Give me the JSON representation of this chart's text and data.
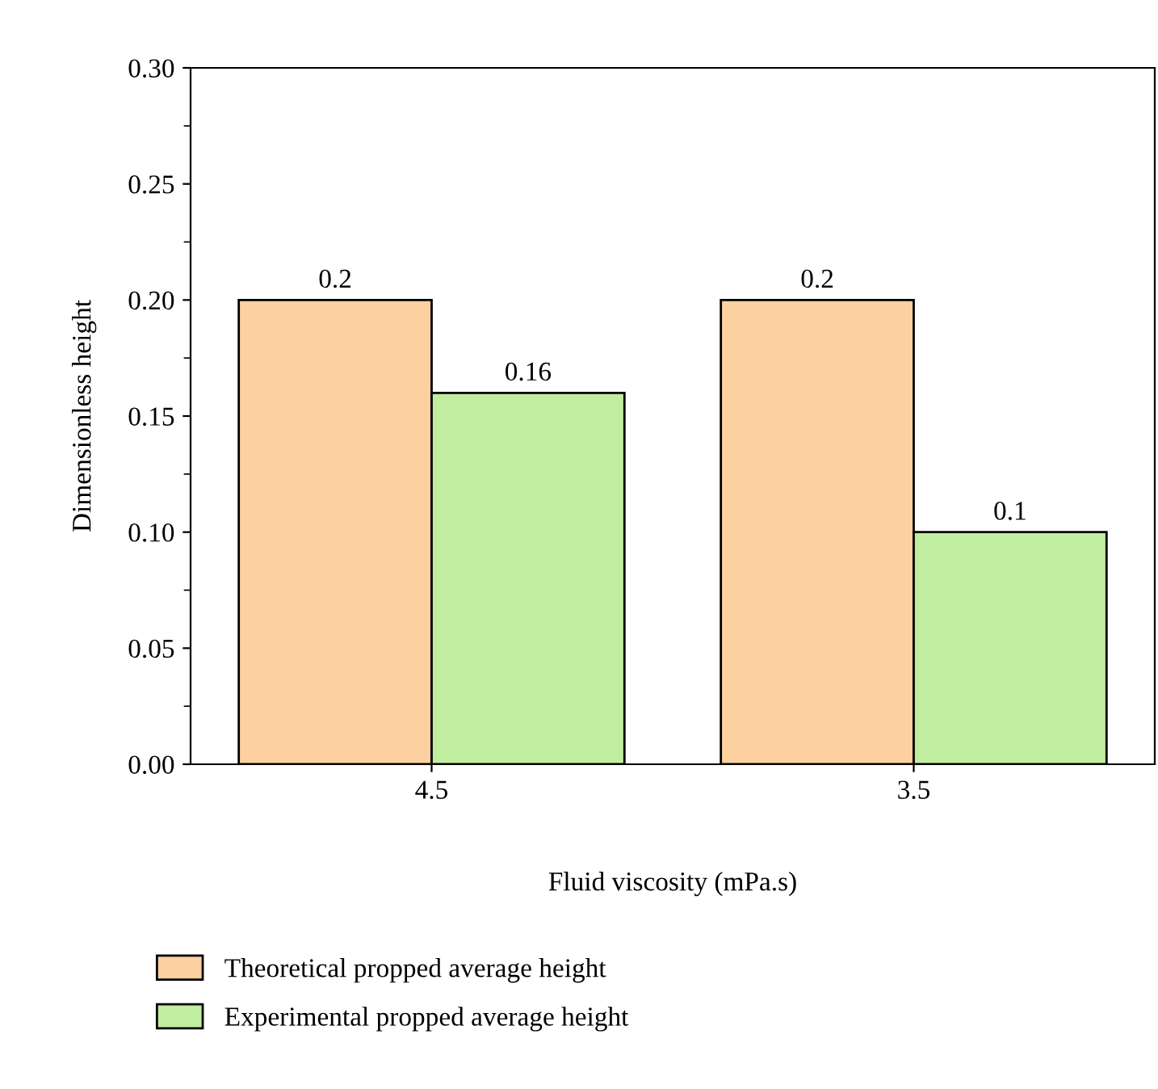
{
  "chart_data": {
    "type": "bar",
    "xlabel": "Fluid viscosity (mPa.s)",
    "ylabel": "Dimensionless height",
    "categories": [
      "4.5",
      "3.5"
    ],
    "series": [
      {
        "name": "Theoretical propped average height",
        "color": "#fdd09f",
        "values": [
          0.2,
          0.2
        ]
      },
      {
        "name": "Experimental propped average height",
        "color": "#c1eda0",
        "values": [
          0.16,
          0.1
        ]
      }
    ],
    "ylim": [
      0,
      0.3
    ],
    "yticks": [
      {
        "value": 0,
        "label": "0.00"
      },
      {
        "value": 0.05,
        "label": "0.05"
      },
      {
        "value": 0.1,
        "label": "0.10"
      },
      {
        "value": 0.15,
        "label": "0.15"
      },
      {
        "value": 0.2,
        "label": "0.20"
      },
      {
        "value": 0.25,
        "label": "0.25"
      },
      {
        "value": 0.3,
        "label": "0.30"
      }
    ],
    "data_labels": true,
    "grid": false,
    "legend": "bottom"
  }
}
